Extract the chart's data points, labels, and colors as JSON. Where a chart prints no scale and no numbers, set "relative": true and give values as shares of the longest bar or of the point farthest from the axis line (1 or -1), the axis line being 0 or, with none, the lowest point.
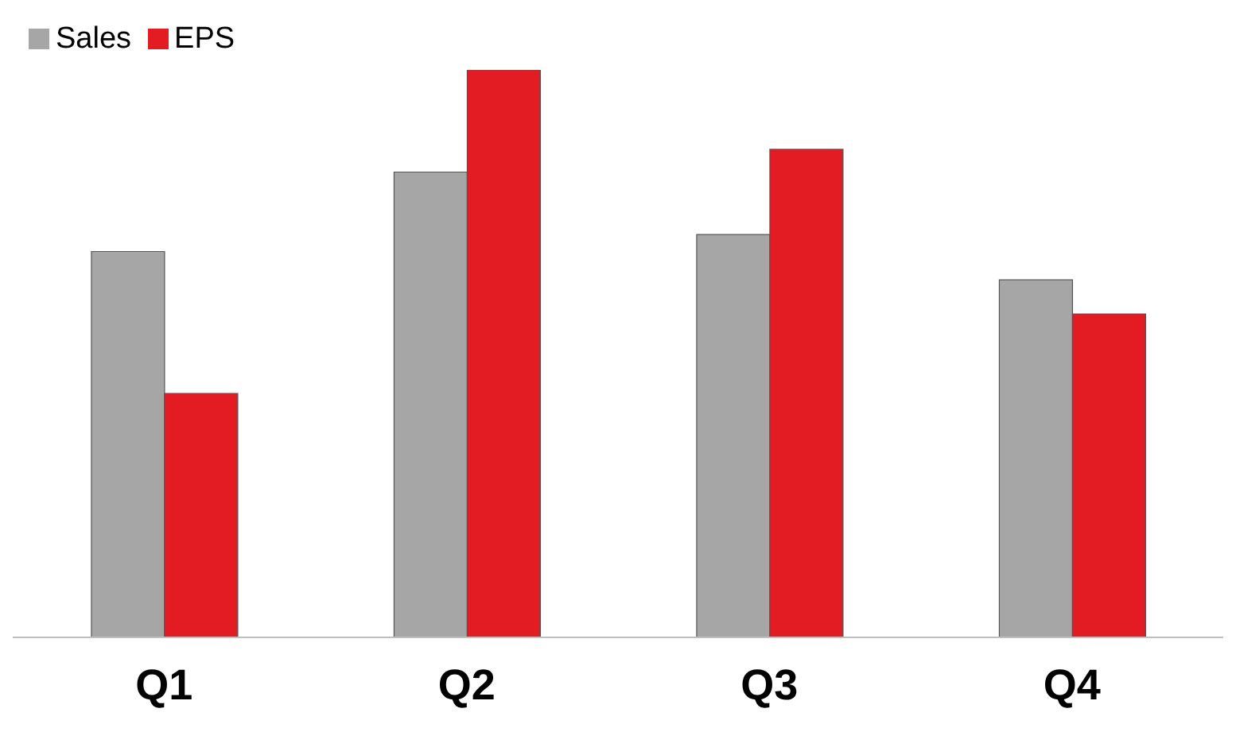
{
  "chart_data": {
    "type": "bar",
    "relative": true,
    "categories": [
      "Q1",
      "Q2",
      "Q3",
      "Q4"
    ],
    "series": [
      {
        "name": "Sales",
        "color": "#a6a6a6",
        "values": [
          0.68,
          0.82,
          0.71,
          0.63
        ]
      },
      {
        "name": "EPS",
        "color": "#e31b23",
        "values": [
          0.43,
          1,
          0.86,
          0.57
        ]
      }
    ],
    "legend": "top left",
    "grid": false
  }
}
